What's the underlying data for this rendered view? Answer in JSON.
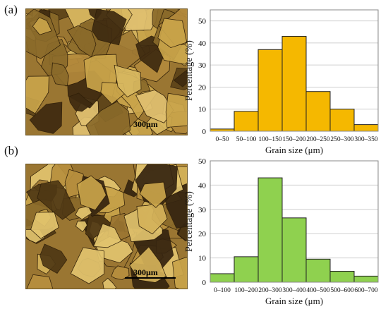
{
  "panels": [
    {
      "label": "(a)",
      "micrograph": {
        "scale_label": "300μm",
        "palette": [
          "#c9a44a",
          "#8a6a2a",
          "#e0c070",
          "#5c4218",
          "#b48a3c",
          "#d8b860",
          "#3e2a10",
          "#a07a34"
        ]
      },
      "chart_data": {
        "type": "bar",
        "categories": [
          "0–50",
          "50–100",
          "100–150",
          "150–200",
          "200–250",
          "250–300",
          "300–350"
        ],
        "values": [
          1,
          9,
          37,
          43,
          18,
          10,
          3
        ],
        "xlabel": "Grain size  (μm)",
        "ylabel": "Percentage (%)",
        "ylim": [
          0,
          55
        ],
        "yticks": [
          0,
          10,
          20,
          30,
          40,
          50
        ],
        "y_tick_labels": [
          "0",
          "10",
          "20",
          "30",
          "40",
          "50"
        ],
        "bar_color": "#f5b800",
        "grid": "horizontal"
      }
    },
    {
      "label": "(b)",
      "micrograph": {
        "scale_label": "300μm",
        "palette": [
          "#c9a44a",
          "#8a6a2a",
          "#e2c46e",
          "#4f3814",
          "#b8903e",
          "#d4b25a",
          "#352410",
          "#9c7632"
        ]
      },
      "chart_data": {
        "type": "bar",
        "categories": [
          "0–100",
          "100–200",
          "200–300",
          "300–400",
          "400–500",
          "500–600",
          "600–700"
        ],
        "values": [
          3.5,
          10.5,
          43,
          26.5,
          9.5,
          4.5,
          2.5
        ],
        "xlabel": "Grain size  (μm)",
        "ylabel": "Percentage (%)",
        "ylim": [
          0,
          50
        ],
        "yticks": [
          0,
          10,
          20,
          30,
          40,
          50
        ],
        "y_tick_labels": [
          "0",
          "10",
          "20",
          "30",
          "40",
          "50"
        ],
        "bar_color": "#8fd14f",
        "grid": "horizontal"
      }
    }
  ]
}
